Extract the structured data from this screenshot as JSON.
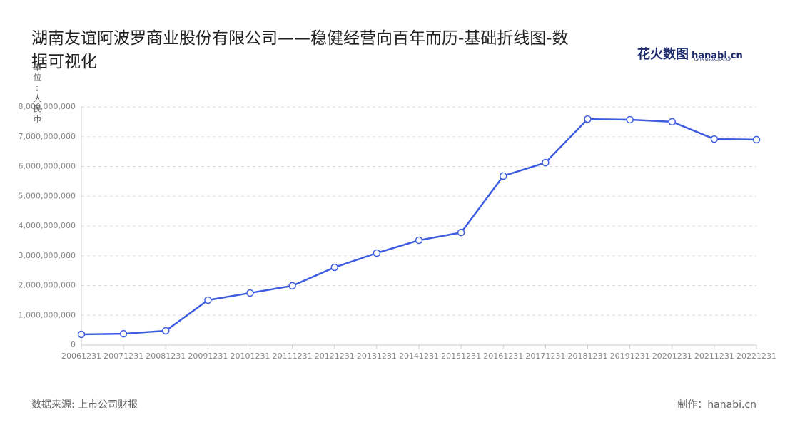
{
  "chart_data": {
    "type": "line",
    "title": "湖南友谊阿波罗商业股份有限公司——稳健经营向百年而历-基础折线图-数据可视化",
    "y_label": "单位:人民币",
    "source": "数据来源: 上市公司财报",
    "credit": "制作：hanabi.cn",
    "logo": {
      "brand": "花火数图",
      "site": "hanabi.cn",
      "tagline": "DATA VISUALIZATION"
    },
    "categories": [
      "20061231",
      "20071231",
      "20081231",
      "20091231",
      "20101231",
      "20111231",
      "20121231",
      "20131231",
      "20141231",
      "20151231",
      "20161231",
      "20171231",
      "20181231",
      "20191231",
      "20201231",
      "20211231",
      "20221231"
    ],
    "series": [
      {
        "name": "人民币",
        "color": "#3d5ce0",
        "values": [
          360000000,
          380000000,
          480000000,
          1510000000,
          1750000000,
          1990000000,
          2610000000,
          3090000000,
          3520000000,
          3780000000,
          5680000000,
          6130000000,
          7590000000,
          7570000000,
          7500000000,
          6920000000,
          6900000000
        ]
      }
    ],
    "ylim": [
      0,
      8000000000
    ],
    "yticks": [
      0,
      {
        "value": 1000000000,
        "label": "1,000,000,000"
      },
      {
        "value": 2000000000,
        "label": "2,000,000,000"
      },
      {
        "value": 3000000000,
        "label": "3,000,000,000"
      },
      {
        "value": 4000000000,
        "label": "4,000,000,000"
      },
      {
        "value": 5000000000,
        "label": "5,000,000,000"
      },
      {
        "value": 6000000000,
        "label": "6,000,000,000"
      },
      {
        "value": 7000000000,
        "label": "7,000,000,000"
      },
      {
        "value": 8000000000,
        "label": "8,000,000,000"
      }
    ],
    "grid": true
  }
}
